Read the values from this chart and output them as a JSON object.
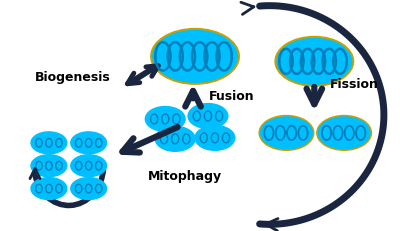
{
  "background_color": "#ffffff",
  "mito_cyan": "#00bfff",
  "mito_outline": "#c8a000",
  "mito_dark": "#0080bb",
  "arrow_color": "#1a2540",
  "text_color": "#000000",
  "labels": {
    "biogenesis": "Biogenesis",
    "fusion": "Fusion",
    "fission": "Fission",
    "mitophagy": "Mitophagy"
  },
  "figsize": [
    4.0,
    2.32
  ],
  "dpi": 100
}
